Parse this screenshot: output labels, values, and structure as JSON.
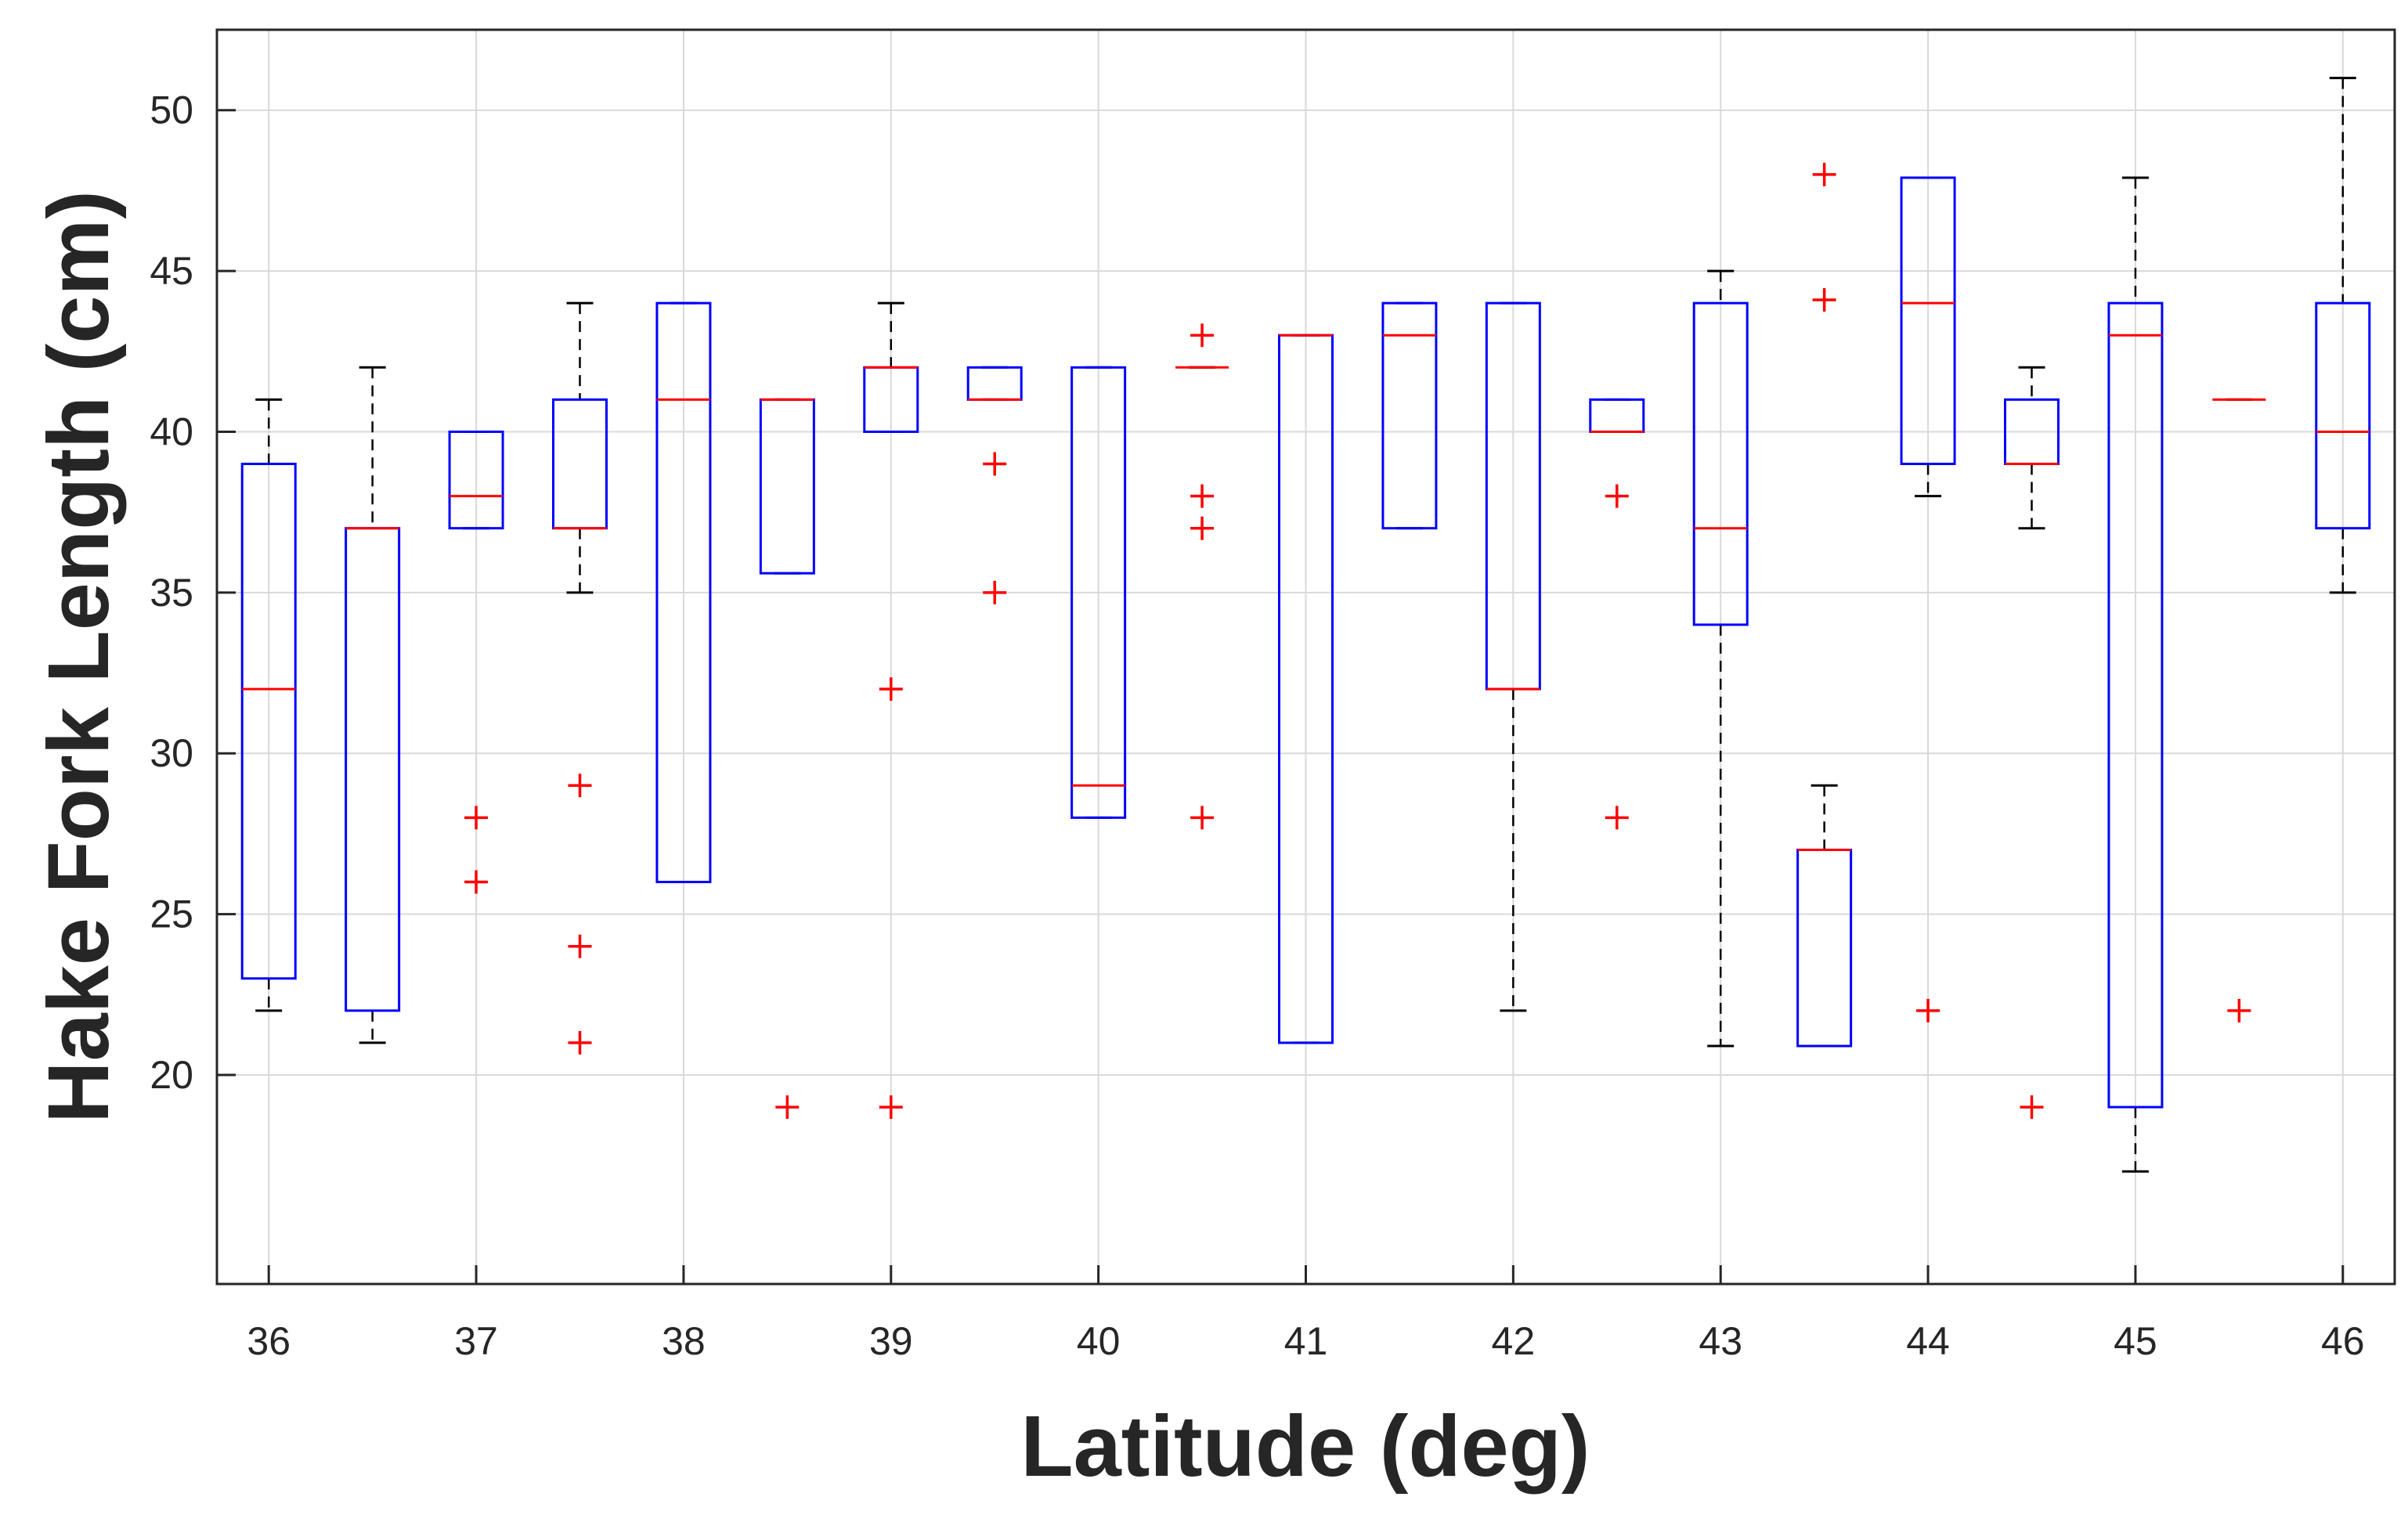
{
  "chart_data": {
    "type": "box",
    "xlabel": "Latitude (deg)",
    "ylabel": "Hake Fork Length (cm)",
    "ylim": [
      13.5,
      52.5
    ],
    "xlim": [
      35.75,
      46.25
    ],
    "grid": true,
    "xticks": [
      36,
      37,
      38,
      39,
      40,
      41,
      42,
      43,
      44,
      45,
      46
    ],
    "yticks": [
      20,
      25,
      30,
      35,
      40,
      45,
      50
    ],
    "colors": {
      "box": "#0000ff",
      "median": "#ff0000",
      "whisker": "#000000",
      "outlier": "#ff0000",
      "grid": "#d9d9d9",
      "axis": "#262626"
    },
    "boxes": [
      {
        "x": 36.0,
        "q1": 23,
        "median": 32,
        "q3": 39,
        "whisker_low": 22,
        "whisker_high": 41,
        "outliers": []
      },
      {
        "x": 36.5,
        "q1": 22,
        "median": 37,
        "q3": 37,
        "whisker_low": 21,
        "whisker_high": 42,
        "outliers": []
      },
      {
        "x": 37.0,
        "q1": 37,
        "median": 38,
        "q3": 40,
        "whisker_low": 37,
        "whisker_high": 40,
        "outliers": [
          28,
          26
        ]
      },
      {
        "x": 37.5,
        "q1": 37,
        "median": 37,
        "q3": 41,
        "whisker_low": 35,
        "whisker_high": 44,
        "outliers": [
          29,
          24,
          21
        ]
      },
      {
        "x": 38.0,
        "q1": 26,
        "median": 41,
        "q3": 44,
        "whisker_low": 26,
        "whisker_high": 44,
        "outliers": []
      },
      {
        "x": 38.5,
        "q1": 35.6,
        "median": 41,
        "q3": 41,
        "whisker_low": 35.6,
        "whisker_high": 41,
        "outliers": [
          19
        ]
      },
      {
        "x": 39.0,
        "q1": 40,
        "median": 42,
        "q3": 42,
        "whisker_low": 40,
        "whisker_high": 44,
        "outliers": [
          32,
          19
        ]
      },
      {
        "x": 39.5,
        "q1": 41,
        "median": 41,
        "q3": 42,
        "whisker_low": 41,
        "whisker_high": 42,
        "outliers": [
          39,
          35
        ]
      },
      {
        "x": 40.0,
        "q1": 28,
        "median": 29,
        "q3": 42,
        "whisker_low": 28,
        "whisker_high": 42,
        "outliers": []
      },
      {
        "x": 40.5,
        "q1": 42,
        "median": 42,
        "q3": 42,
        "whisker_low": 42,
        "whisker_high": 42,
        "outliers": [
          43,
          38,
          37,
          28
        ]
      },
      {
        "x": 41.0,
        "q1": 21,
        "median": 43,
        "q3": 43,
        "whisker_low": 21,
        "whisker_high": 43,
        "outliers": []
      },
      {
        "x": 41.5,
        "q1": 37,
        "median": 43,
        "q3": 44,
        "whisker_low": 37,
        "whisker_high": 44,
        "outliers": []
      },
      {
        "x": 42.0,
        "q1": 32,
        "median": 32,
        "q3": 44,
        "whisker_low": 22,
        "whisker_high": 44,
        "outliers": []
      },
      {
        "x": 42.5,
        "q1": 40,
        "median": 40,
        "q3": 41,
        "whisker_low": 40,
        "whisker_high": 41,
        "outliers": [
          38,
          28
        ]
      },
      {
        "x": 43.0,
        "q1": 34,
        "median": 37,
        "q3": 44,
        "whisker_low": 20.9,
        "whisker_high": 45,
        "outliers": []
      },
      {
        "x": 43.5,
        "q1": 20.9,
        "median": 27,
        "q3": 27,
        "whisker_low": 20.9,
        "whisker_high": 29,
        "outliers": [
          48,
          44.1
        ]
      },
      {
        "x": 44.0,
        "q1": 39,
        "median": 44,
        "q3": 47.9,
        "whisker_low": 38,
        "whisker_high": 47.9,
        "outliers": [
          22
        ]
      },
      {
        "x": 44.5,
        "q1": 39,
        "median": 39,
        "q3": 41,
        "whisker_low": 37,
        "whisker_high": 42,
        "outliers": [
          19
        ]
      },
      {
        "x": 45.0,
        "q1": 19,
        "median": 43,
        "q3": 44,
        "whisker_low": 17,
        "whisker_high": 47.9,
        "outliers": []
      },
      {
        "x": 45.5,
        "q1": 41,
        "median": 41,
        "q3": 41,
        "whisker_low": 41,
        "whisker_high": 41,
        "outliers": [
          22
        ]
      },
      {
        "x": 46.0,
        "q1": 37,
        "median": 40,
        "q3": 44,
        "whisker_low": 35,
        "whisker_high": 51,
        "outliers": []
      }
    ]
  }
}
